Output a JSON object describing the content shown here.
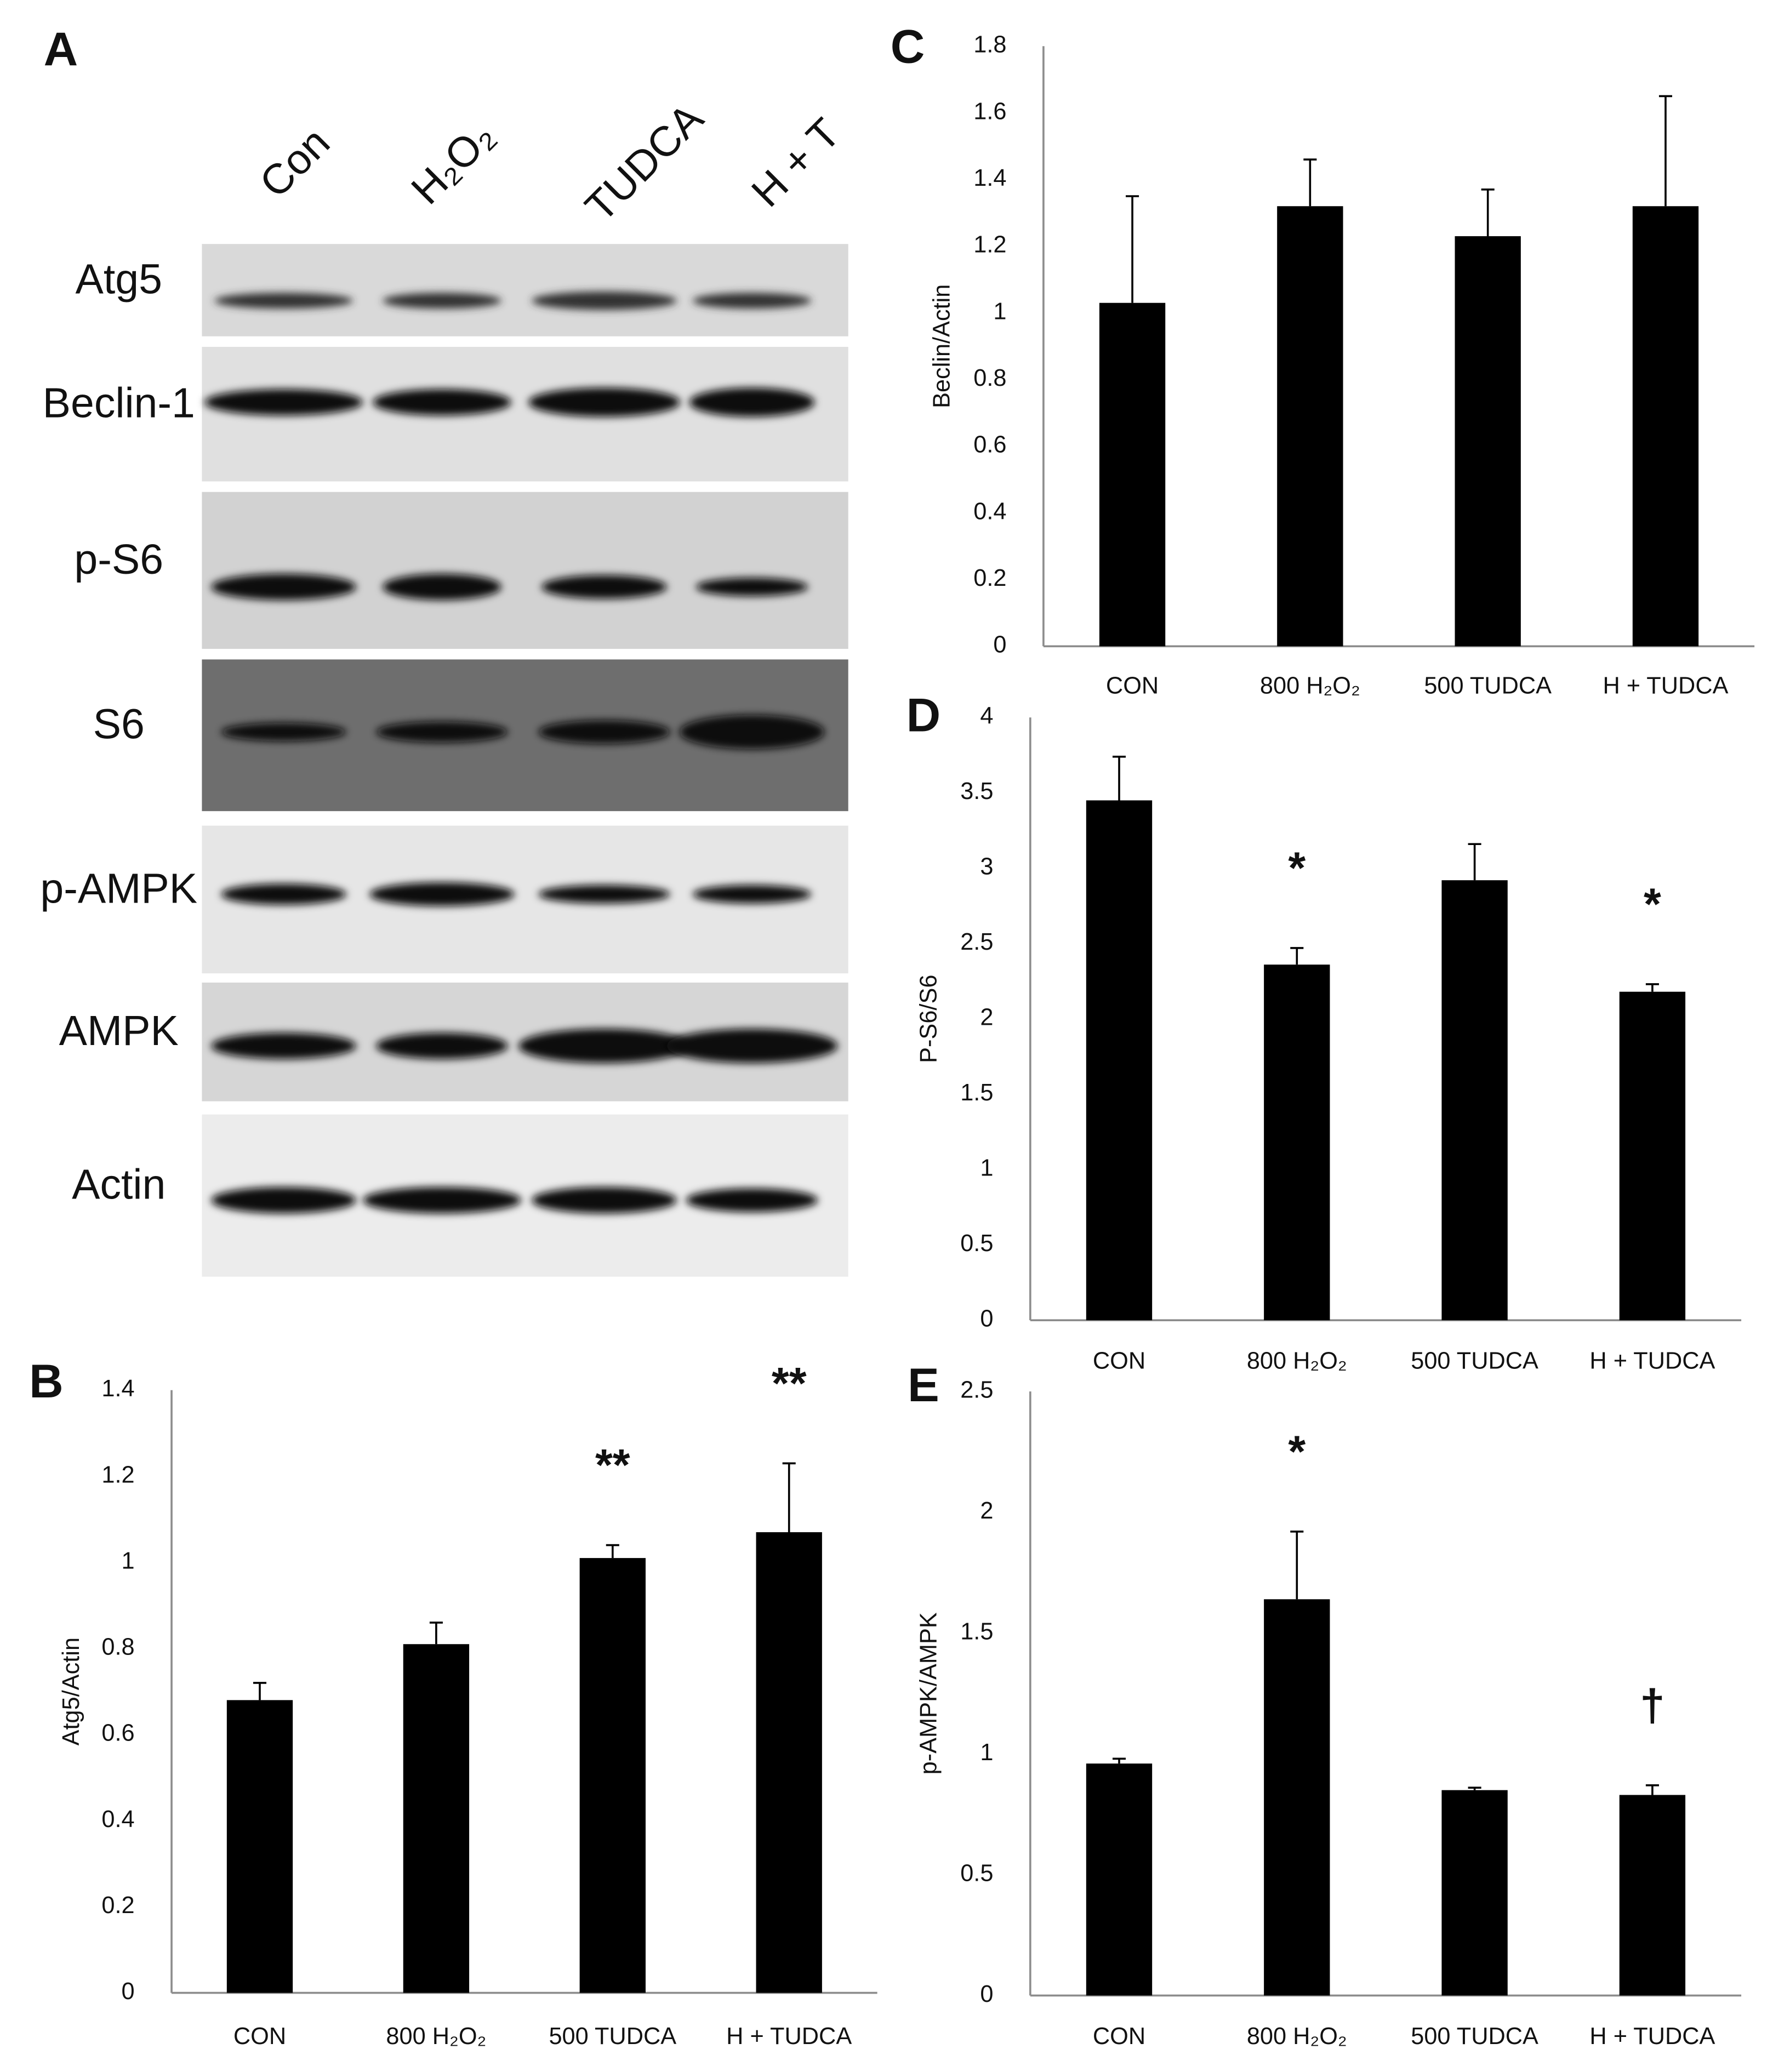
{
  "blot": {
    "panel": "A",
    "lanes": [
      "Con",
      "H₂O₂",
      "TUDCA",
      "H + T"
    ],
    "rows": [
      "Atg5",
      "Beclin-1",
      "p-S6",
      "S6",
      "p-AMPK",
      "AMPK",
      "Actin"
    ]
  },
  "chart_data": [
    {
      "type": "bar",
      "panel": "B",
      "ylabel": "Atg5/Actin",
      "color": "#000000",
      "categories": [
        "CON",
        "800 H₂O₂",
        "500 TUDCA",
        "H + TUDCA"
      ],
      "values": [
        0.68,
        0.81,
        1.01,
        1.07
      ],
      "errors": [
        0.04,
        0.05,
        0.03,
        0.16
      ],
      "annotations": [
        null,
        null,
        "**",
        "**"
      ],
      "ylim": [
        0,
        1.4
      ],
      "yticks": [
        0,
        0.2,
        0.4,
        0.6,
        0.8,
        1,
        1.2,
        1.4
      ],
      "grid": false
    },
    {
      "type": "bar",
      "panel": "C",
      "ylabel": "Beclin/Actin",
      "color": "#000000",
      "categories": [
        "CON",
        "800 H₂O₂",
        "500 TUDCA",
        "H + TUDCA"
      ],
      "values": [
        1.03,
        1.32,
        1.23,
        1.32
      ],
      "errors": [
        0.32,
        0.14,
        0.14,
        0.33
      ],
      "annotations": [
        null,
        null,
        null,
        null
      ],
      "ylim": [
        0,
        1.8
      ],
      "yticks": [
        0,
        0.2,
        0.4,
        0.6,
        0.8,
        1,
        1.2,
        1.4,
        1.6,
        1.8
      ],
      "grid": false
    },
    {
      "type": "bar",
      "panel": "D",
      "ylabel": "P-S6/S6",
      "color": "#000000",
      "categories": [
        "CON",
        "800 H₂O₂",
        "500 TUDCA",
        "H + TUDCA"
      ],
      "values": [
        3.45,
        2.36,
        2.92,
        2.18
      ],
      "errors": [
        0.29,
        0.11,
        0.24,
        0.05
      ],
      "annotations": [
        null,
        "*",
        null,
        "*"
      ],
      "ylim": [
        0,
        4
      ],
      "yticks": [
        0,
        0.5,
        1,
        1.5,
        2,
        2.5,
        3,
        3.5,
        4
      ],
      "grid": false
    },
    {
      "type": "bar",
      "panel": "E",
      "ylabel": "p-AMPK/AMPK",
      "color": "#000000",
      "categories": [
        "CON",
        "800 H₂O₂",
        "500 TUDCA",
        "H + TUDCA"
      ],
      "values": [
        0.96,
        1.64,
        0.85,
        0.83
      ],
      "errors": [
        0.02,
        0.28,
        0.01,
        0.04
      ],
      "annotations": [
        null,
        "*",
        null,
        "†"
      ],
      "ylim": [
        0,
        2.5
      ],
      "yticks": [
        0,
        0.5,
        1,
        1.5,
        2,
        2.5
      ],
      "grid": false
    }
  ]
}
